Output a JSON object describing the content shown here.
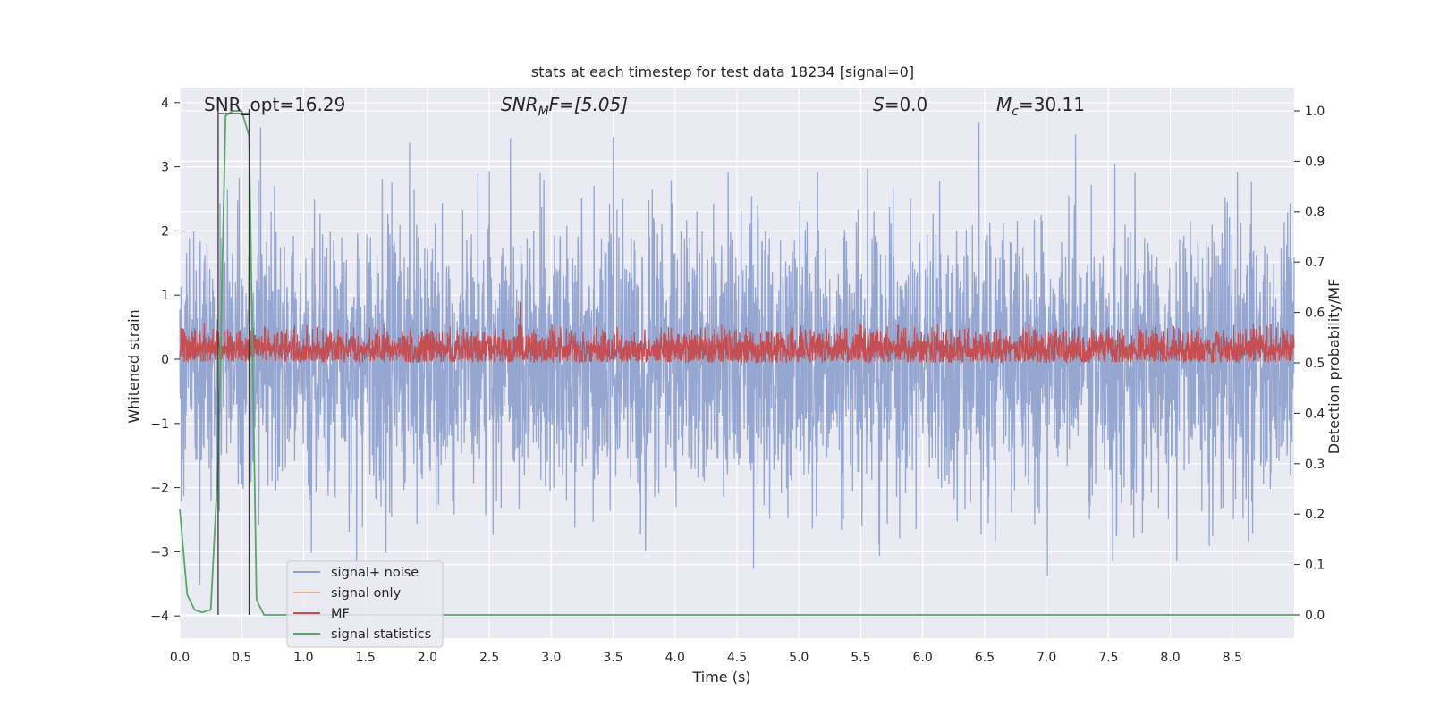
{
  "chart_data": {
    "type": "line",
    "title": "stats at each timestep for test data 18234 [signal=0]",
    "xlabel": "Time (s)",
    "ylabel": "Whitened strain",
    "ylabel_right": "Detection probability/MF",
    "xlim": [
      0.0,
      9.0
    ],
    "ylim": [
      -4.25,
      4.4
    ],
    "ylim_right": [
      -0.05,
      1.04
    ],
    "x_ticks": [
      "0.0",
      "0.5",
      "1.0",
      "1.5",
      "2.0",
      "2.5",
      "3.0",
      "3.5",
      "4.0",
      "4.5",
      "5.0",
      "5.5",
      "6.0",
      "6.5",
      "7.0",
      "7.5",
      "8.0",
      "8.5"
    ],
    "x_tick_values": [
      0.0,
      0.5,
      1.0,
      1.5,
      2.0,
      2.5,
      3.0,
      3.5,
      4.0,
      4.5,
      5.0,
      5.5,
      6.0,
      6.5,
      7.0,
      7.5,
      8.0,
      8.5
    ],
    "y_ticks": [
      "−4",
      "−3",
      "−2",
      "−1",
      "0",
      "1",
      "2",
      "3",
      "4"
    ],
    "y_tick_values": [
      -4,
      -3,
      -2,
      -1,
      0,
      1,
      2,
      3,
      4
    ],
    "y_ticks_right": [
      "0.0",
      "0.1",
      "0.2",
      "0.3",
      "0.4",
      "0.5",
      "0.6",
      "0.7",
      "0.8",
      "0.9",
      "1.0"
    ],
    "y_tick_values_right": [
      0.0,
      0.1,
      0.2,
      0.3,
      0.4,
      0.5,
      0.6,
      0.7,
      0.8,
      0.9,
      1.0
    ],
    "annotations": {
      "snr_opt": "SNR_opt=16.29",
      "snr_mf_base": "SNR",
      "snr_mf_sub": "M",
      "snr_mf_rest": "F=[5.05]",
      "s_label": "S",
      "s_value": "=0.0",
      "mc_base": "M",
      "mc_sub": "c",
      "mc_value": "=30.11"
    },
    "markers": {
      "vlines_x": [
        0.31,
        0.56
      ],
      "window_bracket": [
        0.31,
        0.56
      ]
    },
    "series": [
      {
        "name": "signal+ noise",
        "color": "#8c9fcc",
        "axis": "left",
        "kind": "noise",
        "std": 1.0,
        "seed": 18234,
        "samples": 3600
      },
      {
        "name": "signal only",
        "color": "#dd8452",
        "axis": "left",
        "values_x": [
          0.0,
          9.0
        ],
        "values_y": [
          0.0,
          0.0
        ]
      },
      {
        "name": "MF",
        "color": "#c44e52",
        "axis": "right",
        "kind": "mf",
        "baseline": 0.5,
        "range": [
          0.5,
          0.58
        ],
        "spike_x": 2.75,
        "spike_y": 0.62,
        "seed": 42,
        "samples": 3600
      },
      {
        "name": "signal statistics",
        "color": "#55a868",
        "axis": "right",
        "values_x": [
          0.0,
          0.06,
          0.12,
          0.18,
          0.25,
          0.31,
          0.37,
          0.43,
          0.5,
          0.56,
          0.62,
          0.68,
          0.75,
          1.0,
          2.0,
          3.0,
          4.0,
          5.0,
          6.0,
          7.0,
          8.0,
          9.0
        ],
        "values_y": [
          0.21,
          0.04,
          0.01,
          0.005,
          0.01,
          0.3,
          0.99,
          1.0,
          1.0,
          0.95,
          0.03,
          0.0,
          0.0,
          0.0,
          0.0,
          0.0,
          0.0,
          0.0,
          0.0,
          0.0,
          0.0,
          0.0
        ]
      }
    ],
    "legend": {
      "position": "lower-left",
      "entries": [
        "signal+ noise",
        "signal only",
        "MF",
        "signal statistics"
      ],
      "colors": [
        "#8c9fcc",
        "#dd8452",
        "#c44e52",
        "#55a868"
      ]
    },
    "grid": true,
    "background": "#eaeaf2"
  }
}
